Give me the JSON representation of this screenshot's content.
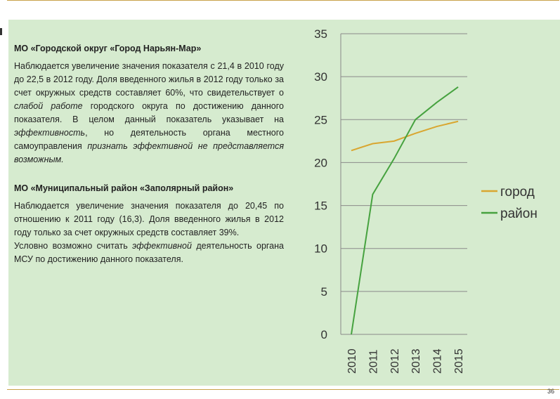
{
  "section1": {
    "title": "МО «Городской округ «Город Нарьян-Мар»",
    "p1": "Наблюдается увеличение значения показателя с 21,4 в 2010 году до 22,5 в 2012 году. Доля введенного жилья в 2012 году только за счет окружных средств составляет 60%, что свидетельствует о ",
    "p1_it": "слабой работе",
    "p2": " городского округа по достижению данного показателя. В целом данный показатель указывает на ",
    "p2_it": "эффективность",
    "p3": ", но деятельность органа местного самоуправления ",
    "p3_it": "признать эффективной не представляется возможным."
  },
  "section2": {
    "title": "МО «Муниципальный район «Заполярный район»",
    "p1": "Наблюдается увеличение значения показателя до 20,45 по отношению к 2011 году (16,3). Доля введенного жилья в 2012 году только за счет окружных средств составляет 39%.",
    "p2_a": "Условно возможно считать ",
    "p2_it": "эффективной",
    "p2_b": " деятельность органа МСУ по достижению данного показателя."
  },
  "page_number": "36",
  "chart_data": {
    "type": "line",
    "categories": [
      "2010",
      "2011",
      "2012",
      "2013",
      "2014",
      "2015"
    ],
    "series": [
      {
        "name": "город",
        "color": "#d9a630",
        "values": [
          21.4,
          22.2,
          22.5,
          23.4,
          24.2,
          24.8
        ]
      },
      {
        "name": "район",
        "color": "#46a23f",
        "values": [
          0,
          16.3,
          20.45,
          25.0,
          27.0,
          28.8
        ]
      }
    ],
    "ylim": [
      0,
      35
    ],
    "yticks": [
      "0",
      "5",
      "10",
      "15",
      "20",
      "25",
      "30",
      "35"
    ],
    "grid": "horizontal",
    "legend": "right"
  }
}
